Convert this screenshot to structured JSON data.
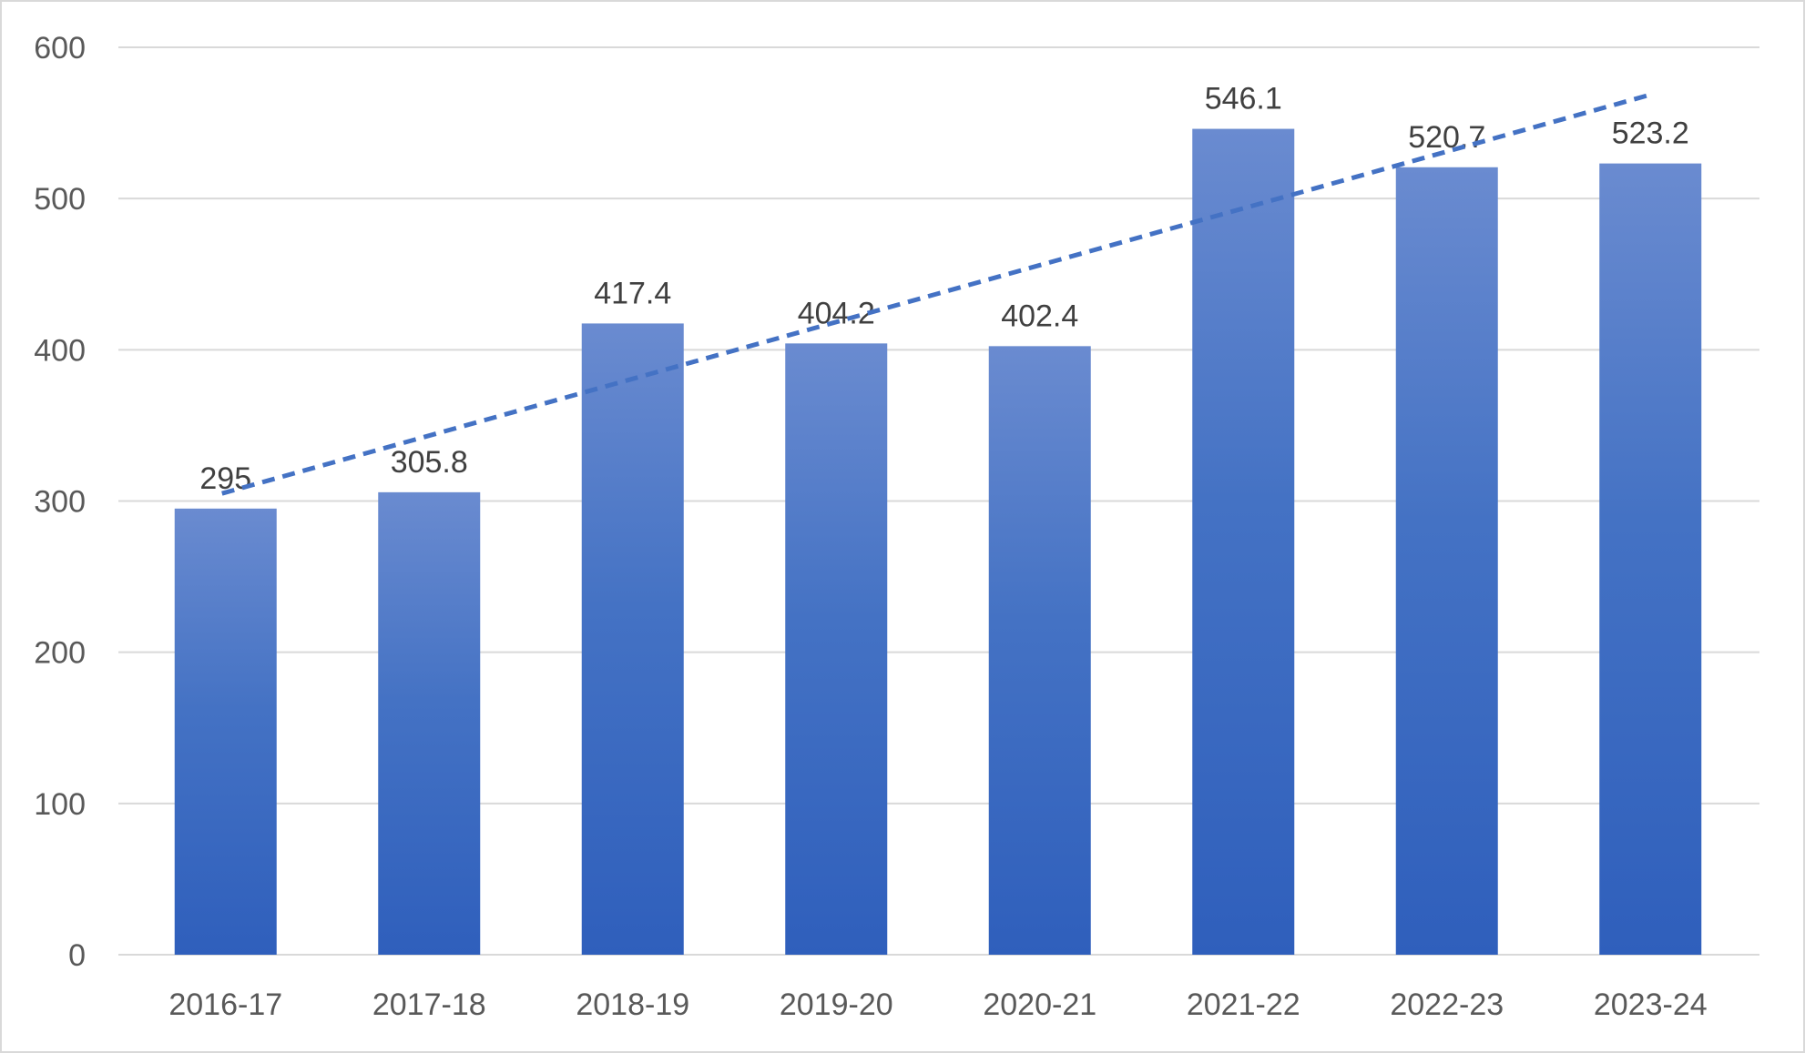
{
  "chart_data": {
    "type": "bar",
    "title": "",
    "xlabel": "",
    "ylabel": "",
    "categories": [
      "2016-17",
      "2017-18",
      "2018-19",
      "2019-20",
      "2020-21",
      "2021-22",
      "2022-23",
      "2023-24"
    ],
    "values": [
      295,
      305.8,
      417.4,
      404.2,
      402.4,
      546.1,
      520.7,
      523.2
    ],
    "data_labels": [
      "295",
      "305.8",
      "417.4",
      "404.2",
      "402.4",
      "546.1",
      "520.7",
      "523.2"
    ],
    "ylim": [
      0,
      600
    ],
    "yticks": [
      0,
      100,
      200,
      300,
      400,
      500,
      600
    ],
    "ytick_labels": [
      "0",
      "100",
      "200",
      "300",
      "400",
      "500",
      "600"
    ],
    "grid": true,
    "legend": "none",
    "trendline": {
      "type": "linear",
      "style": "dashed",
      "start_value": 305,
      "end_value": 568
    },
    "colors": {
      "bar_top": "#6a8bd0",
      "bar_mid": "#4472c4",
      "bar_bottom": "#2f5fbc",
      "trendline": "#4472c4",
      "gridline": "#d9d9d9",
      "tick_text": "#595959",
      "label_text": "#404040"
    }
  }
}
